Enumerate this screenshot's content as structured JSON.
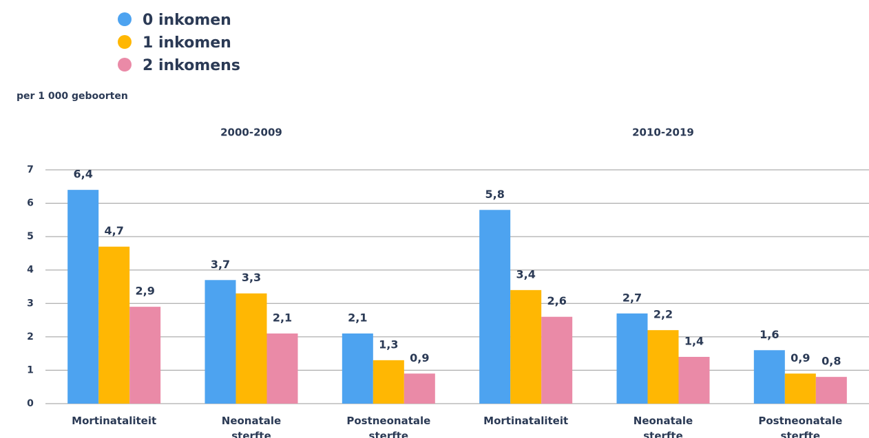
{
  "chart_data": {
    "type": "bar",
    "y_axis_label": "per 1 000 geboorten",
    "category_groups": [
      "2000-2009",
      "2010-2019"
    ],
    "categories": [
      "Mortinataliteit",
      "Neonatale sterfte",
      "Postneonatale sterfte",
      "Mortinataliteit",
      "Neonatale sterfte",
      "Postneonatale sterfte"
    ],
    "series": [
      {
        "name": "0 inkomen",
        "color": "#4da3f0",
        "values": [
          6.4,
          3.7,
          2.1,
          5.8,
          2.7,
          1.6
        ],
        "value_labels": [
          "6,4",
          "3,7",
          "2,1",
          "5,8",
          "2,7",
          "1,6"
        ]
      },
      {
        "name": "1 inkomen",
        "color": "#ffb703",
        "values": [
          4.7,
          3.3,
          1.3,
          3.4,
          2.2,
          0.9
        ],
        "value_labels": [
          "4,7",
          "3,3",
          "1,3",
          "3,4",
          "2,2",
          "0,9"
        ]
      },
      {
        "name": "2 inkomens",
        "color": "#ea8aa7",
        "values": [
          2.9,
          2.1,
          0.9,
          2.6,
          1.4,
          0.8
        ],
        "value_labels": [
          "2,9",
          "2,1",
          "0,9",
          "2,6",
          "1,4",
          "0,8"
        ]
      }
    ],
    "ylim": [
      0,
      7
    ],
    "yticks": [
      0,
      1,
      2,
      3,
      4,
      5,
      6,
      7
    ],
    "grid": true,
    "legend": "top-left"
  }
}
